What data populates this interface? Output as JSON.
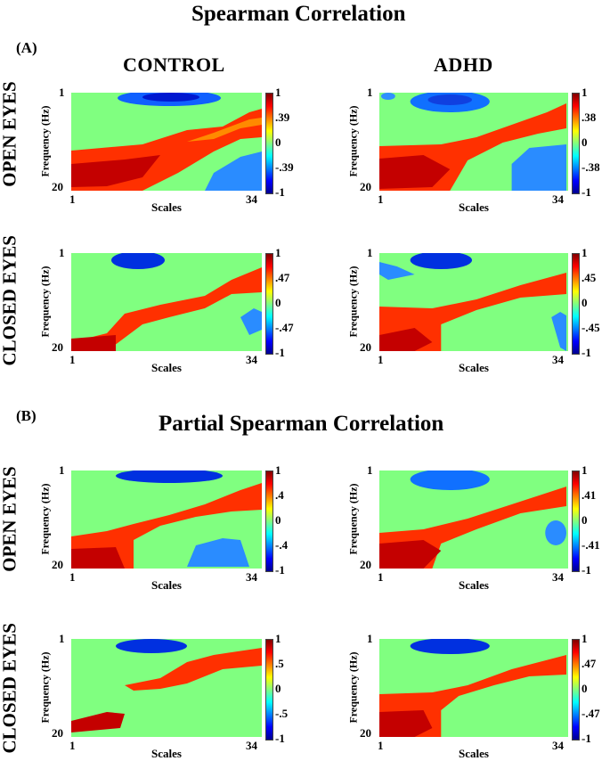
{
  "figure": {
    "section_a": {
      "letter": "(A)",
      "title": "Spearman Correlation"
    },
    "section_b": {
      "letter": "(B)",
      "title": "Partial Spearman Correlation"
    },
    "col_control": "CONTROL",
    "col_adhd": "ADHD",
    "row_open": "OPEN EYES",
    "row_closed": "CLOSED EYES"
  },
  "chart_data": [
    {
      "id": "a_open_control",
      "type": "heatmap",
      "xlabel": "Scales",
      "ylabel": "Frequency (Hz)",
      "x_ticks": [
        "1",
        "34"
      ],
      "y_ticks": [
        "1",
        "20"
      ],
      "x_range": [
        1,
        34
      ],
      "y_range": [
        1,
        20
      ],
      "colorbar_ticks": [
        "1",
        ".39",
        "0",
        "-.39",
        "-1"
      ],
      "colorbar_range": [
        -1,
        1
      ]
    },
    {
      "id": "a_open_adhd",
      "type": "heatmap",
      "xlabel": "Scales",
      "ylabel": "Frequency (Hz)",
      "x_ticks": [
        "1",
        "34"
      ],
      "y_ticks": [
        "1",
        "20"
      ],
      "x_range": [
        1,
        34
      ],
      "y_range": [
        1,
        20
      ],
      "colorbar_ticks": [
        "1",
        ".38",
        "0",
        "-.38",
        "-1"
      ],
      "colorbar_range": [
        -1,
        1
      ]
    },
    {
      "id": "a_closed_control",
      "type": "heatmap",
      "xlabel": "Scales",
      "ylabel": "Frequency (Hz)",
      "x_ticks": [
        "1",
        "34"
      ],
      "y_ticks": [
        "1",
        "20"
      ],
      "x_range": [
        1,
        34
      ],
      "y_range": [
        1,
        20
      ],
      "colorbar_ticks": [
        "1",
        ".47",
        "0",
        "-.47",
        "-1"
      ],
      "colorbar_range": [
        -1,
        1
      ]
    },
    {
      "id": "a_closed_adhd",
      "type": "heatmap",
      "xlabel": "Scales",
      "ylabel": "Frequency (Hz)",
      "x_ticks": [
        "1",
        "34"
      ],
      "y_ticks": [
        "1",
        "20"
      ],
      "x_range": [
        1,
        34
      ],
      "y_range": [
        1,
        20
      ],
      "colorbar_ticks": [
        "1",
        ".45",
        "0",
        "-.45",
        "-1"
      ],
      "colorbar_range": [
        -1,
        1
      ]
    },
    {
      "id": "b_open_control",
      "type": "heatmap",
      "xlabel": "Scales",
      "ylabel": "Frequency (Hz)",
      "x_ticks": [
        "1",
        "34"
      ],
      "y_ticks": [
        "1",
        "20"
      ],
      "x_range": [
        1,
        34
      ],
      "y_range": [
        1,
        20
      ],
      "colorbar_ticks": [
        "1",
        ".4",
        "0",
        "-.4",
        "-1"
      ],
      "colorbar_range": [
        -1,
        1
      ]
    },
    {
      "id": "b_open_adhd",
      "type": "heatmap",
      "xlabel": "Scales",
      "ylabel": "Frequency (Hz)",
      "x_ticks": [
        "1",
        "34"
      ],
      "y_ticks": [
        "1",
        "20"
      ],
      "x_range": [
        1,
        34
      ],
      "y_range": [
        1,
        20
      ],
      "colorbar_ticks": [
        "1",
        ".41",
        "0",
        "-.41",
        "-1"
      ],
      "colorbar_range": [
        -1,
        1
      ]
    },
    {
      "id": "b_closed_control",
      "type": "heatmap",
      "xlabel": "Scales",
      "ylabel": "Frequency (Hz)",
      "x_ticks": [
        "1",
        "34"
      ],
      "y_ticks": [
        "1",
        "20"
      ],
      "x_range": [
        1,
        34
      ],
      "y_range": [
        1,
        20
      ],
      "colorbar_ticks": [
        "1",
        ".5",
        "0",
        "-.5",
        "-1"
      ],
      "colorbar_range": [
        -1,
        1
      ]
    },
    {
      "id": "b_closed_adhd",
      "type": "heatmap",
      "xlabel": "Scales",
      "ylabel": "Frequency (Hz)",
      "x_ticks": [
        "1",
        "34"
      ],
      "y_ticks": [
        "1",
        "20"
      ],
      "x_range": [
        1,
        34
      ],
      "y_range": [
        1,
        20
      ],
      "colorbar_ticks": [
        "1",
        ".47",
        "0",
        "-.47",
        "-1"
      ],
      "colorbar_range": [
        -1,
        1
      ]
    }
  ]
}
